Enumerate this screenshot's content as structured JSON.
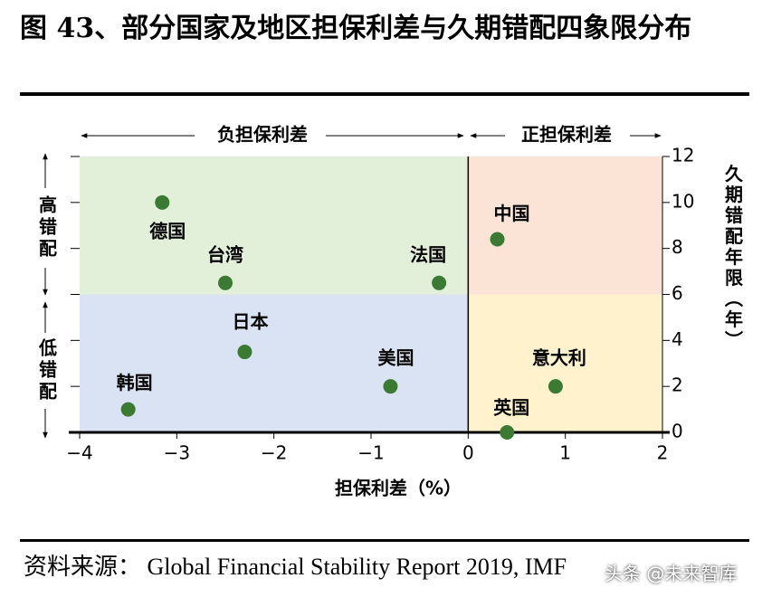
{
  "chart_data": {
    "type": "scatter",
    "title": "图 43、部分国家及地区担保利差与久期错配四象限分布",
    "xlabel": "担保利差（%）",
    "ylabel": "久期错配年限（年）",
    "top_left_note": "负担保利差",
    "top_right_note": "正担保利差",
    "upper_side_note": "高错配",
    "lower_side_note": "低错配",
    "color": "#3b7a32",
    "xlim": [
      -4,
      2
    ],
    "ylim": [
      0,
      12
    ],
    "xticks": [
      {
        "value": -4,
        "label": "−4"
      },
      {
        "value": -3,
        "label": "−3"
      },
      {
        "value": -2,
        "label": "−2"
      },
      {
        "value": -1,
        "label": "−1"
      },
      0,
      1,
      2
    ],
    "yticks": [
      0,
      2,
      4,
      6,
      8,
      10,
      12
    ],
    "points": [
      {
        "label": "德国",
        "x": -3.15,
        "y": 10
      },
      {
        "label": "台湾",
        "x": -2.5,
        "y": 6.5
      },
      {
        "label": "法国",
        "x": -0.3,
        "y": 6.5
      },
      {
        "label": "日本",
        "x": -2.3,
        "y": 3.5
      },
      {
        "label": "美国",
        "x": -0.8,
        "y": 2
      },
      {
        "label": "韩国",
        "x": -3.5,
        "y": 1
      },
      {
        "label": "中国",
        "x": 0.3,
        "y": 8.4
      },
      {
        "label": "意大利",
        "x": 0.9,
        "y": 2
      },
      {
        "label": "英国",
        "x": 0.4,
        "y": 0
      }
    ],
    "source": "资料来源： Global Financial Stability Report 2019, IMF",
    "watermark": "头条 @未来智库"
  }
}
